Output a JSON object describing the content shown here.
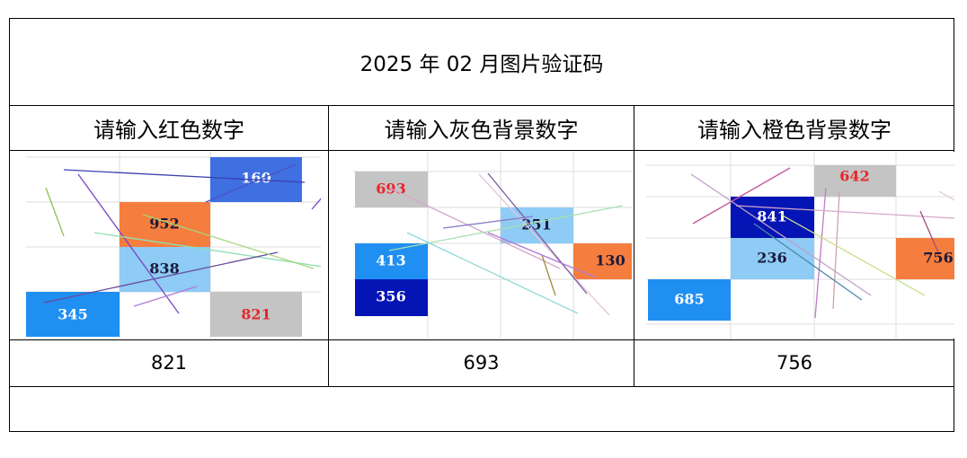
{
  "title": "2025 年 02 月图片验证码",
  "colors": {
    "red": "#e8262c",
    "light_blue": "#8ecbf5",
    "blue": "#1f8ff2",
    "dark_blue": "#0514b4",
    "royal_blue": "#3f6fe0",
    "orange": "#f57e3e",
    "gray": "#c4c4c4"
  },
  "columns": [
    {
      "header": "请输入红色数字",
      "answer": "821",
      "cells": [
        {
          "label": "160",
          "text_color": "#ffffff",
          "fill": "royal_blue"
        },
        {
          "label": "952",
          "text_color": "#1a1a3a",
          "fill": "orange"
        },
        {
          "label": "838",
          "text_color": "#1a1a3a",
          "fill": "light_blue"
        },
        {
          "label": "345",
          "text_color": "#ffffff",
          "fill": "blue"
        },
        {
          "label": "821",
          "text_color": "#e8262c",
          "fill": "gray"
        }
      ]
    },
    {
      "header": "请输入灰色背景数字",
      "answer": "693",
      "cells": [
        {
          "label": "693",
          "text_color": "#e8262c",
          "fill": "gray"
        },
        {
          "label": "251",
          "text_color": "#1a1a3a",
          "fill": "light_blue"
        },
        {
          "label": "413",
          "text_color": "#ffffff",
          "fill": "blue"
        },
        {
          "label": "130",
          "text_color": "#1a1a3a",
          "fill": "orange"
        },
        {
          "label": "356",
          "text_color": "#ffffff",
          "fill": "dark_blue"
        }
      ]
    },
    {
      "header": "请输入橙色背景数字",
      "answer": "756",
      "cells": [
        {
          "label": "642",
          "text_color": "#e8262c",
          "fill": "gray"
        },
        {
          "label": "841",
          "text_color": "#ffffff",
          "fill": "dark_blue"
        },
        {
          "label": "236",
          "text_color": "#1a1a3a",
          "fill": "light_blue"
        },
        {
          "label": "756",
          "text_color": "#1a1a3a",
          "fill": "orange"
        },
        {
          "label": "685",
          "text_color": "#ffffff",
          "fill": "blue"
        }
      ]
    }
  ]
}
